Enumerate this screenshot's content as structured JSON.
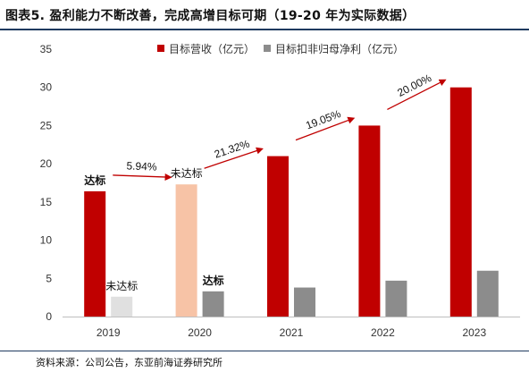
{
  "title": "图表5.   盈利能力不断改善，完成高增目标可期（19-20 年为实际数据）",
  "source": "资料来源：公司公告，东亚前海证券研究所",
  "chart_data": {
    "type": "bar",
    "categories": [
      "2019",
      "2020",
      "2021",
      "2022",
      "2023"
    ],
    "ylim": [
      0,
      35
    ],
    "yticks": [
      0,
      5,
      10,
      15,
      20,
      25,
      30,
      35
    ],
    "grid": false,
    "legend_position": "top",
    "series": [
      {
        "name": "目标营收（亿元）",
        "values": [
          16.4,
          17.3,
          21.0,
          25.0,
          30.0
        ],
        "color": "#c00000"
      },
      {
        "name": "目标扣非归母净利（亿元）",
        "values": [
          2.6,
          3.3,
          3.8,
          4.7,
          6.0
        ],
        "color": "#8c8c8c"
      }
    ],
    "bar_overrides": [
      {
        "series": 0,
        "index": 1,
        "color": "#f7c3a6"
      },
      {
        "series": 1,
        "index": 0,
        "color": "#e0e0e0"
      }
    ],
    "bar_labels": [
      {
        "series": 0,
        "index": 0,
        "text": "达标",
        "bold": true
      },
      {
        "series": 0,
        "index": 1,
        "text": "未达标",
        "bold": false
      },
      {
        "series": 1,
        "index": 0,
        "text": "未达标",
        "bold": false
      },
      {
        "series": 1,
        "index": 1,
        "text": "达标",
        "bold": true
      }
    ],
    "growth_arrows": [
      {
        "from": 0,
        "to": 1,
        "text": "5.94%"
      },
      {
        "from": 1,
        "to": 2,
        "text": "21.32%"
      },
      {
        "from": 2,
        "to": 3,
        "text": "19.05%"
      },
      {
        "from": 3,
        "to": 4,
        "text": "20.00%"
      }
    ]
  }
}
